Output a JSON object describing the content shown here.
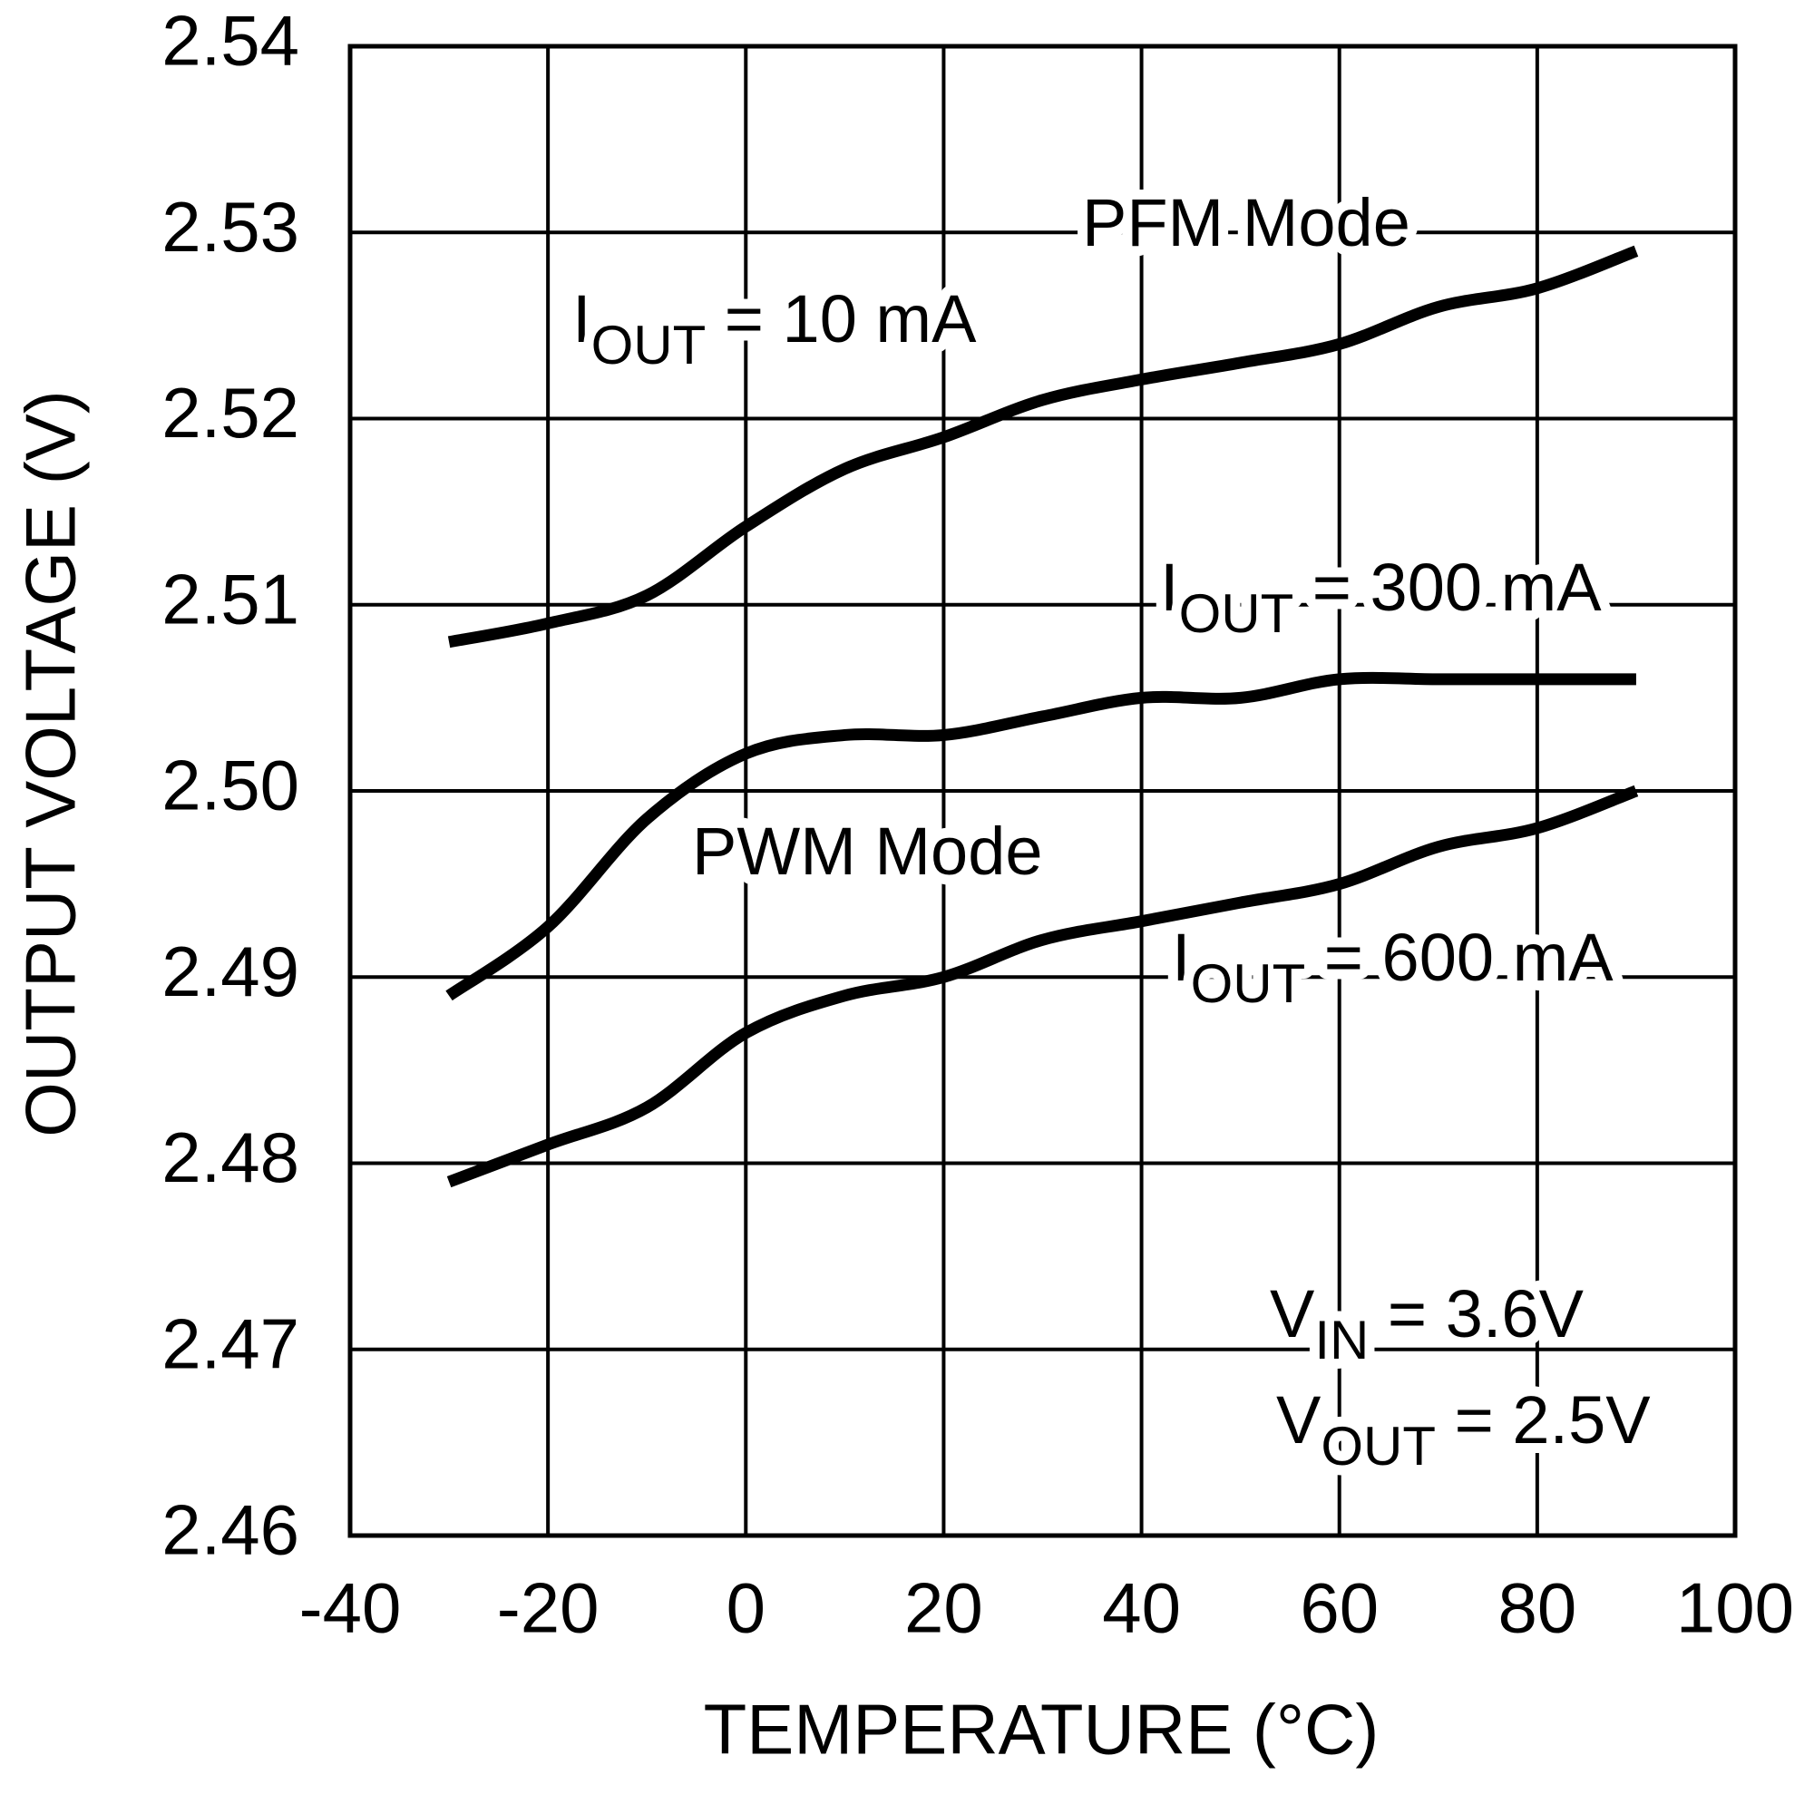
{
  "chart_data": {
    "type": "line",
    "xlabel": "TEMPERATURE (°C)",
    "ylabel": "OUTPUT VOLTAGE (V)",
    "x": [
      -30,
      -20,
      -10,
      0,
      10,
      20,
      30,
      40,
      50,
      60,
      70,
      80,
      90
    ],
    "series": [
      {
        "color": "#000000",
        "values": [
          2.508,
          2.509,
          2.5105,
          2.5142,
          2.5173,
          2.519,
          2.521,
          2.5221,
          2.523,
          2.524,
          2.526,
          2.527,
          2.529
        ]
      },
      {
        "color": "#000000",
        "values": [
          2.489,
          2.4927,
          2.4985,
          2.502,
          2.503,
          2.503,
          2.504,
          2.505,
          2.505,
          2.506,
          2.506,
          2.506,
          2.506
        ]
      },
      {
        "color": "#000000",
        "values": [
          2.479,
          2.481,
          2.483,
          2.487,
          2.489,
          2.49,
          2.492,
          2.493,
          2.494,
          2.495,
          2.497,
          2.498,
          2.5
        ]
      }
    ],
    "annotations": [
      {
        "main": "PFM Mode"
      },
      {
        "main": "I",
        "sub": "OUT",
        "tail": " = 10 mA"
      },
      {
        "main": "I",
        "sub": "OUT",
        "tail": " = 300 mA"
      },
      {
        "main": "PWM Mode"
      },
      {
        "main": "I",
        "sub": "OUT",
        "tail": " = 600 mA"
      },
      {
        "main": "V",
        "sub": "IN",
        "tail": " = 3.6V"
      },
      {
        "main": "V",
        "sub": "OUT",
        "tail": " = 2.5V"
      }
    ],
    "xlim": [
      -40,
      100
    ],
    "xticks": [
      -40,
      -20,
      0,
      20,
      40,
      60,
      80,
      100
    ],
    "ylim": [
      2.46,
      2.54
    ],
    "yticks": [
      2.46,
      2.47,
      2.48,
      2.49,
      {
        "value": 2.5,
        "label": "2.50"
      },
      2.51,
      2.52,
      2.53,
      2.54
    ],
    "grid": true
  }
}
